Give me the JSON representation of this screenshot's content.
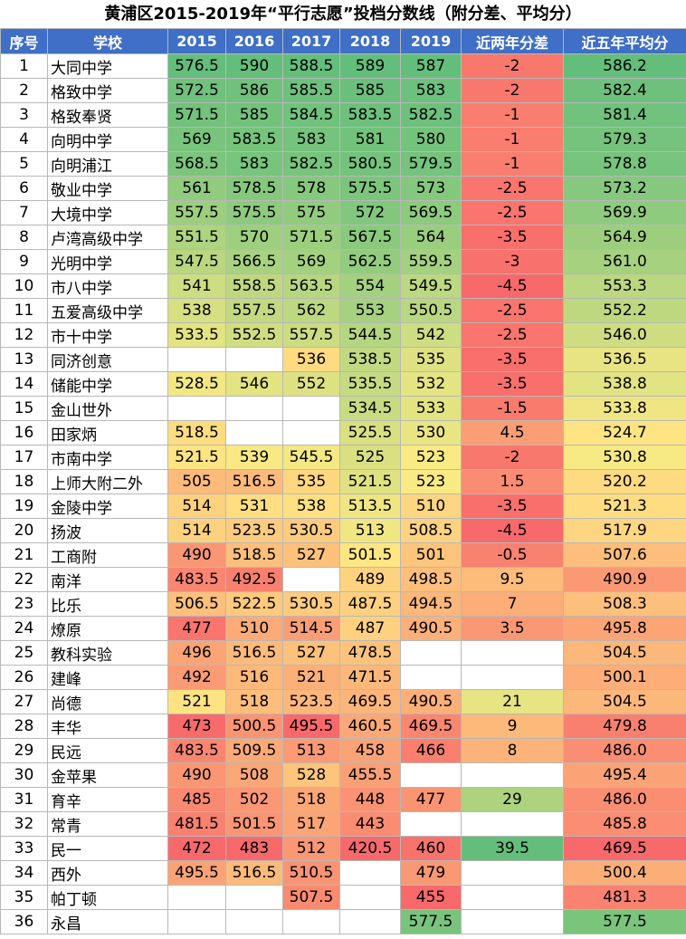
{
  "title": "黄浦区2015-2019年“平行志愿”投档分数线（附分差、平均分）",
  "headers": [
    "序号",
    "学校",
    "2015",
    "2016",
    "2017",
    "2018",
    "2019",
    "近两年分差",
    "近五年平均分"
  ],
  "rows": [
    [
      "1",
      "大同中学",
      "576.5",
      "590",
      "588.5",
      "589",
      "587",
      "-2",
      "586.2"
    ],
    [
      "2",
      "格致中学",
      "572.5",
      "586",
      "585.5",
      "585",
      "583",
      "-2",
      "582.4"
    ],
    [
      "3",
      "格致奉贤",
      "571.5",
      "585",
      "584.5",
      "583.5",
      "582.5",
      "-1",
      "581.4"
    ],
    [
      "4",
      "向明中学",
      "569",
      "583.5",
      "583",
      "581",
      "580",
      "-1",
      "579.3"
    ],
    [
      "5",
      "向明浦江",
      "568.5",
      "583",
      "582.5",
      "580.5",
      "579.5",
      "-1",
      "578.8"
    ],
    [
      "6",
      "敬业中学",
      "561",
      "578.5",
      "578",
      "575.5",
      "573",
      "-2.5",
      "573.2"
    ],
    [
      "7",
      "大境中学",
      "557.5",
      "575.5",
      "575",
      "572",
      "569.5",
      "-2.5",
      "569.9"
    ],
    [
      "8",
      "卢湾高级中学",
      "551.5",
      "570",
      "571.5",
      "567.5",
      "564",
      "-3.5",
      "564.9"
    ],
    [
      "9",
      "光明中学",
      "547.5",
      "566.5",
      "569",
      "562.5",
      "559.5",
      "-3",
      "561.0"
    ],
    [
      "10",
      "市八中学",
      "541",
      "558.5",
      "563.5",
      "554",
      "549.5",
      "-4.5",
      "553.3"
    ],
    [
      "11",
      "五爱高级中学",
      "538",
      "557.5",
      "562",
      "553",
      "550.5",
      "-2.5",
      "552.2"
    ],
    [
      "12",
      "市十中学",
      "533.5",
      "552.5",
      "557.5",
      "544.5",
      "542",
      "-2.5",
      "546.0"
    ],
    [
      "13",
      "同济创意",
      "",
      "",
      "536",
      "538.5",
      "535",
      "-3.5",
      "536.5"
    ],
    [
      "14",
      "储能中学",
      "528.5",
      "546",
      "552",
      "535.5",
      "532",
      "-3.5",
      "538.8"
    ],
    [
      "15",
      "金山世外",
      "",
      "",
      "",
      "534.5",
      "533",
      "-1.5",
      "533.8"
    ],
    [
      "16",
      "田家炳",
      "518.5",
      "",
      "",
      "525.5",
      "530",
      "4.5",
      "524.7"
    ],
    [
      "17",
      "市南中学",
      "521.5",
      "539",
      "545.5",
      "525",
      "523",
      "-2",
      "530.8"
    ],
    [
      "18",
      "上师大附二外",
      "505",
      "516.5",
      "535",
      "521.5",
      "523",
      "1.5",
      "520.2"
    ],
    [
      "19",
      "金陵中学",
      "514",
      "531",
      "538",
      "513.5",
      "510",
      "-3.5",
      "521.3"
    ],
    [
      "20",
      "扬波",
      "514",
      "523.5",
      "530.5",
      "513",
      "508.5",
      "-4.5",
      "517.9"
    ],
    [
      "21",
      "工商附",
      "490",
      "518.5",
      "527",
      "501.5",
      "501",
      "-0.5",
      "507.6"
    ],
    [
      "22",
      "南洋",
      "483.5",
      "492.5",
      "",
      "489",
      "498.5",
      "9.5",
      "490.9"
    ],
    [
      "23",
      "比乐",
      "506.5",
      "522.5",
      "530.5",
      "487.5",
      "494.5",
      "7",
      "508.3"
    ],
    [
      "24",
      "燎原",
      "477",
      "510",
      "514.5",
      "487",
      "490.5",
      "3.5",
      "495.8"
    ],
    [
      "25",
      "教科实验",
      "496",
      "516.5",
      "527",
      "478.5",
      "",
      "",
      "504.5"
    ],
    [
      "26",
      "建峰",
      "492",
      "516",
      "521",
      "471.5",
      "",
      "",
      "500.1"
    ],
    [
      "27",
      "尚德",
      "521",
      "518",
      "523.5",
      "469.5",
      "490.5",
      "21",
      "504.5"
    ],
    [
      "28",
      "丰华",
      "473",
      "500.5",
      "495.5",
      "460.5",
      "469.5",
      "9",
      "479.8"
    ],
    [
      "29",
      "民远",
      "483.5",
      "509.5",
      "513",
      "458",
      "466",
      "8",
      "486.0"
    ],
    [
      "30",
      "金苹果",
      "490",
      "508",
      "528",
      "455.5",
      "",
      "",
      "495.4"
    ],
    [
      "31",
      "育辛",
      "485",
      "502",
      "518",
      "448",
      "477",
      "29",
      "486.0"
    ],
    [
      "32",
      "常青",
      "481.5",
      "501.5",
      "517",
      "443",
      "",
      "",
      "485.8"
    ],
    [
      "33",
      "民一",
      "472",
      "483",
      "512",
      "420.5",
      "460",
      "39.5",
      "469.5"
    ],
    [
      "34",
      "西外",
      "495.5",
      "516.5",
      "510.5",
      "",
      "479",
      "",
      "500.4"
    ],
    [
      "35",
      "帕丁顿",
      "",
      "",
      "507.5",
      "",
      "455",
      "",
      "481.3"
    ],
    [
      "36",
      "永昌",
      "",
      "",
      "",
      "",
      "577.5",
      "",
      "577.5"
    ]
  ]
}
